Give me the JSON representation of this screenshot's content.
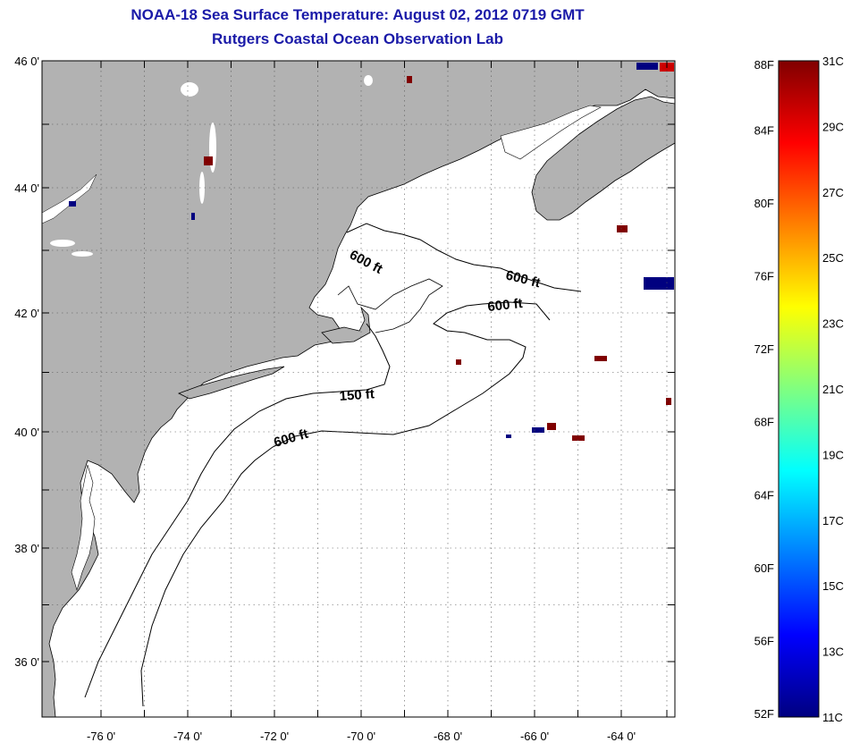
{
  "header": {
    "title": "NOAA-18 Sea Surface Temperature:  August 02, 2012 0719 GMT",
    "subtitle": "Rutgers Coastal Ocean Observation Lab"
  },
  "map": {
    "lon_ticks": [
      "-76 0'",
      "-74 0'",
      "-72 0'",
      "-70 0'",
      "-68 0'",
      "-66 0'",
      "-64 0'"
    ],
    "lat_ticks": [
      "46 0'",
      "44 0'",
      "42 0'",
      "40 0'",
      "38 0'",
      "36 0'"
    ],
    "contour_labels": [
      "600 ft",
      "600 ft",
      "600 ft",
      "150 ft",
      "600 ft"
    ],
    "land_color": "#b2b2b2",
    "water_color": "#ffffff"
  },
  "colorbar": {
    "f_labels": [
      "88F",
      "84F",
      "80F",
      "76F",
      "72F",
      "68F",
      "64F",
      "60F",
      "56F",
      "52F"
    ],
    "c_labels": [
      "31C",
      "29C",
      "27C",
      "25C",
      "23C",
      "21C",
      "19C",
      "17C",
      "15C",
      "13C",
      "11C"
    ],
    "colors": [
      "#800000",
      "#ff0000",
      "#ff8000",
      "#ffff00",
      "#80ff80",
      "#00ffff",
      "#0080ff",
      "#0000ff",
      "#000080"
    ]
  }
}
